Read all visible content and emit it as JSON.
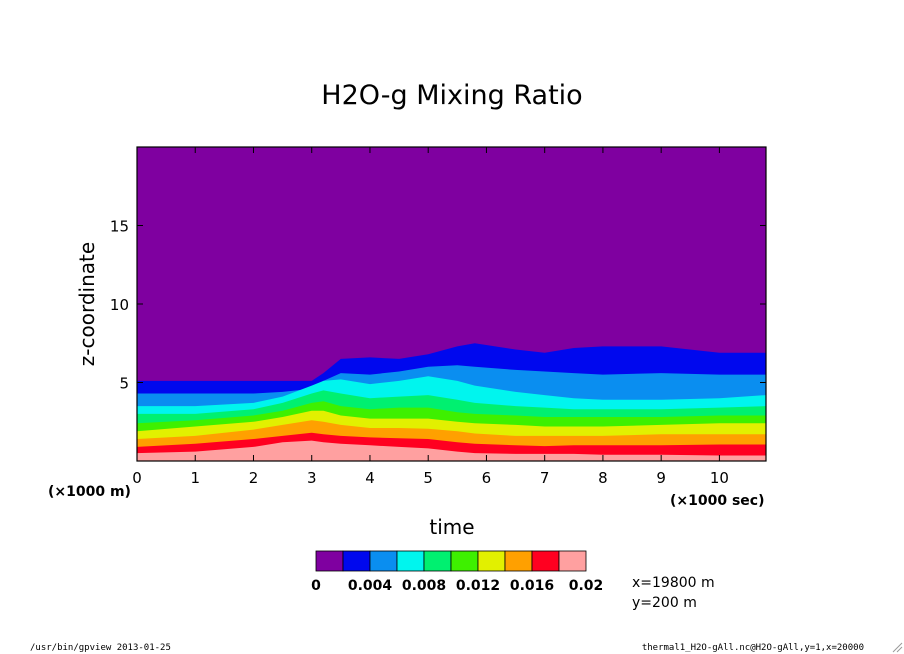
{
  "chart_data": {
    "type": "heatmap",
    "title": "H2O-g Mixing Ratio",
    "xlabel": "time",
    "ylabel": "z-coordinate",
    "x_unit": "(×1000 sec)",
    "y_unit": "(×1000 m)",
    "xlim": [
      0,
      10.8
    ],
    "ylim": [
      0,
      20
    ],
    "x_ticks": [
      "0",
      "1",
      "2",
      "3",
      "4",
      "5",
      "6",
      "7",
      "8",
      "9",
      "10"
    ],
    "y_ticks": [
      "5",
      "10",
      "15"
    ],
    "grid": false,
    "colorbar": {
      "levels": [
        0,
        0.002,
        0.004,
        0.006,
        0.008,
        0.01,
        0.012,
        0.014,
        0.016,
        0.018,
        0.02
      ],
      "tick_labels": [
        "0",
        "0.004",
        "0.008",
        "0.012",
        "0.016",
        "0.02"
      ],
      "colors": [
        "#7f00a0",
        "#0008ee",
        "#0a8ef0",
        "#00f5ee",
        "#00f070",
        "#3ef000",
        "#e2f000",
        "#ffa000",
        "#ff0020",
        "#ffa0a0"
      ]
    },
    "contours_note": "upper boundary height (×1000 m) of each band by time",
    "time": [
      0,
      1,
      2,
      2.5,
      3,
      3.2,
      3.5,
      4,
      4.5,
      5,
      5.5,
      5.8,
      6.5,
      7,
      7.5,
      8,
      9,
      10,
      10.8
    ],
    "band_tops": [
      [
        0.5,
        0.6,
        0.9,
        1.2,
        1.3,
        1.2,
        1.1,
        1.0,
        0.9,
        0.8,
        0.6,
        0.5,
        0.45,
        0.45,
        0.45,
        0.4,
        0.4,
        0.35,
        0.35
      ],
      [
        0.9,
        1.1,
        1.4,
        1.6,
        1.8,
        1.7,
        1.6,
        1.5,
        1.45,
        1.4,
        1.2,
        1.1,
        1.0,
        0.95,
        1.0,
        1.0,
        1.0,
        1.05,
        1.05
      ],
      [
        1.4,
        1.6,
        2.0,
        2.3,
        2.6,
        2.5,
        2.3,
        2.1,
        2.1,
        2.05,
        1.9,
        1.75,
        1.6,
        1.6,
        1.6,
        1.6,
        1.7,
        1.7,
        1.7
      ],
      [
        1.9,
        2.2,
        2.5,
        2.8,
        3.2,
        3.2,
        2.9,
        2.7,
        2.7,
        2.7,
        2.5,
        2.4,
        2.3,
        2.2,
        2.2,
        2.2,
        2.3,
        2.4,
        2.4
      ],
      [
        2.4,
        2.6,
        2.9,
        3.2,
        3.7,
        3.8,
        3.5,
        3.3,
        3.4,
        3.4,
        3.1,
        3.0,
        2.9,
        2.8,
        2.8,
        2.8,
        2.8,
        2.9,
        2.9
      ],
      [
        3.0,
        3.0,
        3.3,
        3.7,
        4.3,
        4.5,
        4.3,
        4.0,
        4.1,
        4.2,
        3.9,
        3.7,
        3.5,
        3.4,
        3.3,
        3.3,
        3.3,
        3.4,
        3.5
      ],
      [
        3.5,
        3.5,
        3.7,
        4.1,
        4.8,
        5.1,
        5.2,
        4.9,
        5.1,
        5.4,
        5.1,
        4.8,
        4.4,
        4.2,
        4.0,
        3.9,
        3.9,
        4.0,
        4.2
      ],
      [
        4.3,
        4.3,
        4.3,
        4.4,
        4.6,
        5.1,
        5.6,
        5.5,
        5.7,
        6.0,
        6.1,
        6.0,
        5.8,
        5.7,
        5.6,
        5.5,
        5.6,
        5.5,
        5.5
      ],
      [
        5.1,
        5.1,
        5.1,
        5.1,
        5.1,
        5.6,
        6.5,
        6.6,
        6.5,
        6.8,
        7.3,
        7.5,
        7.1,
        6.9,
        7.2,
        7.3,
        7.3,
        6.9,
        6.9
      ]
    ]
  },
  "info": {
    "x_pos": "x=19800 m",
    "y_pos": "y=200 m"
  },
  "footer": {
    "left": "/usr/bin/gpview  2013-01-25",
    "right": "thermal1_H2O-gAll.nc@H2O-gAll,y=1,x=20000"
  }
}
